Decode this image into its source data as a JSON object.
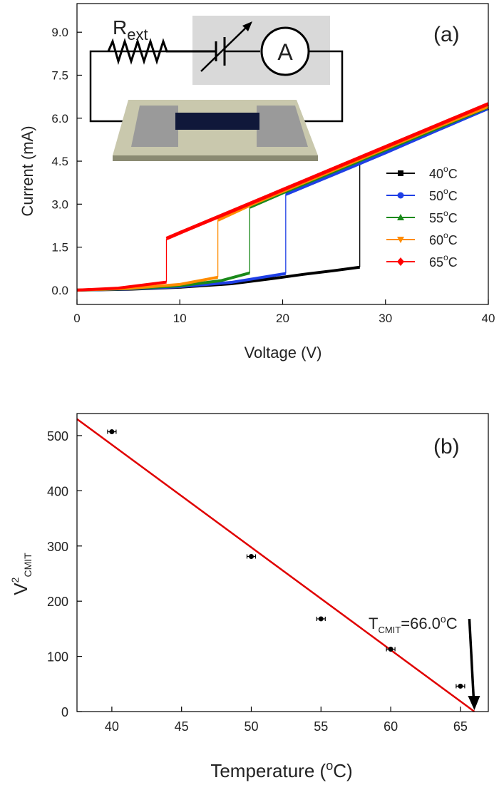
{
  "chart_data": [
    {
      "type": "line",
      "panel_label": "(a)",
      "xlabel": "Voltage (V)",
      "ylabel": "Current (mA)",
      "xlim": [
        0,
        40
      ],
      "ylim": [
        -0.5,
        10
      ],
      "xticks": [
        0,
        10,
        20,
        30,
        40
      ],
      "yticks": [
        0.0,
        1.5,
        3.0,
        4.5,
        6.0,
        7.5,
        9.0
      ],
      "ytick_labels": [
        "0.0",
        "1.5",
        "3.0",
        "4.5",
        "6.0",
        "7.5",
        "9.0"
      ],
      "legend_position": "right",
      "inset": {
        "resistor_label_main": "R",
        "resistor_label_sub": "ext",
        "ammeter_label": "A"
      },
      "series": [
        {
          "name_main": "40",
          "name_sup": "o",
          "name_suffix": "C",
          "color": "#000000",
          "marker": "square",
          "low": [
            [
              0,
              0
            ],
            [
              5,
              0.03
            ],
            [
              10,
              0.1
            ],
            [
              15,
              0.22
            ],
            [
              20,
              0.45
            ],
            [
              22,
              0.55
            ],
            [
              25,
              0.68
            ],
            [
              27.5,
              0.8
            ]
          ],
          "high": [
            [
              27.5,
              4.45
            ],
            [
              30,
              4.85
            ],
            [
              35,
              5.6
            ],
            [
              40,
              6.35
            ]
          ]
        },
        {
          "name_main": "50",
          "name_sup": "o",
          "name_suffix": "C",
          "color": "#1f3fe6",
          "marker": "circle",
          "low": [
            [
              0,
              0
            ],
            [
              5,
              0.04
            ],
            [
              10,
              0.12
            ],
            [
              15,
              0.27
            ],
            [
              20.3,
              0.58
            ]
          ],
          "high": [
            [
              20.3,
              3.35
            ],
            [
              25,
              4.05
            ],
            [
              30,
              4.8
            ],
            [
              35,
              5.58
            ],
            [
              40,
              6.35
            ]
          ]
        },
        {
          "name_main": "55",
          "name_sup": "o",
          "name_suffix": "C",
          "color": "#1a8a1a",
          "marker": "triangle-up",
          "low": [
            [
              0,
              0
            ],
            [
              5,
              0.05
            ],
            [
              10,
              0.15
            ],
            [
              14,
              0.33
            ],
            [
              16.8,
              0.6
            ]
          ],
          "high": [
            [
              16.8,
              2.9
            ],
            [
              20,
              3.4
            ],
            [
              25,
              4.15
            ],
            [
              30,
              4.9
            ],
            [
              35,
              5.65
            ],
            [
              40,
              6.4
            ]
          ]
        },
        {
          "name_main": "60",
          "name_sup": "o",
          "name_suffix": "C",
          "color": "#ff8c00",
          "marker": "triangle-down",
          "low": [
            [
              0,
              0
            ],
            [
              5,
              0.06
            ],
            [
              10,
              0.2
            ],
            [
              13.7,
              0.45
            ]
          ],
          "high": [
            [
              13.7,
              2.45
            ],
            [
              17,
              3.0
            ],
            [
              20,
              3.45
            ],
            [
              25,
              4.2
            ],
            [
              30,
              4.95
            ],
            [
              35,
              5.7
            ],
            [
              40,
              6.42
            ]
          ]
        },
        {
          "name_main": "65",
          "name_sup": "o",
          "name_suffix": "C",
          "color": "#ff0000",
          "marker": "diamond",
          "low": [
            [
              0,
              0
            ],
            [
              4,
              0.07
            ],
            [
              8.7,
              0.28
            ]
          ],
          "high": [
            [
              8.7,
              1.8
            ],
            [
              10,
              2.0
            ],
            [
              15,
              2.75
            ],
            [
              20,
              3.5
            ],
            [
              25,
              4.25
            ],
            [
              30,
              5.0
            ],
            [
              35,
              5.75
            ],
            [
              40,
              6.5
            ]
          ]
        }
      ]
    },
    {
      "type": "scatter",
      "panel_label": "(b)",
      "xlabel_main": "Temperature (",
      "xlabel_sup": "o",
      "xlabel_suffix": "C)",
      "ylabel_main": "V",
      "ylabel_sup": "2",
      "ylabel_sub": "CMIT",
      "xlim": [
        37.5,
        67
      ],
      "ylim": [
        0,
        540
      ],
      "xticks": [
        40,
        45,
        50,
        55,
        60,
        65
      ],
      "yticks": [
        0,
        100,
        200,
        300,
        400,
        500
      ],
      "points": [
        {
          "x": 40,
          "y": 507
        },
        {
          "x": 50,
          "y": 281
        },
        {
          "x": 55,
          "y": 168
        },
        {
          "x": 60,
          "y": 113
        },
        {
          "x": 65,
          "y": 46
        }
      ],
      "fit_line": {
        "x": [
          37.5,
          66.0
        ],
        "y": [
          530,
          0
        ],
        "color": "#e00000"
      },
      "annotation": {
        "main": "T",
        "sub": "CMIT",
        "eq": "=66.0",
        "sup": "o",
        "suffix": "C",
        "arrow_target_x": 66.0,
        "arrow_target_y": 0
      }
    }
  ]
}
